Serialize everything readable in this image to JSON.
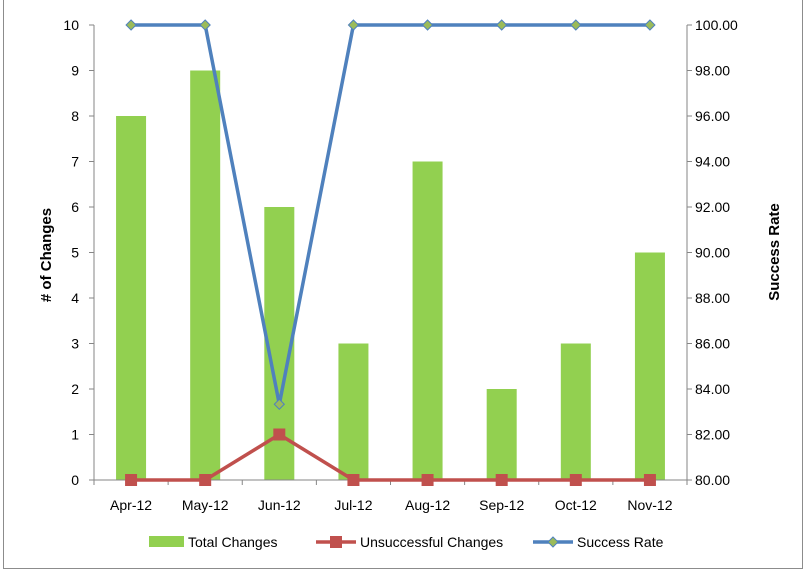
{
  "chart_data": {
    "type": "bar",
    "categories": [
      "Apr-12",
      "May-12",
      "Jun-12",
      "Jul-12",
      "Aug-12",
      "Sep-12",
      "Oct-12",
      "Nov-12"
    ],
    "series": [
      {
        "name": "Total Changes",
        "kind": "bar",
        "axis": "left",
        "color": "#92d050",
        "values": [
          8,
          9,
          6,
          3,
          7,
          2,
          3,
          5
        ]
      },
      {
        "name": "Unsuccessful Changes",
        "kind": "line",
        "axis": "left",
        "color": "#c0504d",
        "marker": "square",
        "values": [
          0,
          0,
          1,
          0,
          0,
          0,
          0,
          0
        ]
      },
      {
        "name": "Success Rate",
        "kind": "line",
        "axis": "right",
        "color": "#4f81bd",
        "marker": "diamond",
        "marker_fill": "#9bbb59",
        "values": [
          100,
          100,
          83.33,
          100,
          100,
          100,
          100,
          100
        ]
      }
    ],
    "ylabel": "# of Changes",
    "y2label": "Success Rate",
    "ylim": [
      0,
      10
    ],
    "y2lim": [
      80,
      100
    ],
    "yticks": [
      "0",
      "1",
      "2",
      "3",
      "4",
      "5",
      "6",
      "7",
      "8",
      "9",
      "10"
    ],
    "y2ticks": [
      "80.00",
      "82.00",
      "84.00",
      "86.00",
      "88.00",
      "90.00",
      "92.00",
      "94.00",
      "96.00",
      "98.00",
      "100.00"
    ],
    "legend_position": "bottom",
    "grid": false
  }
}
